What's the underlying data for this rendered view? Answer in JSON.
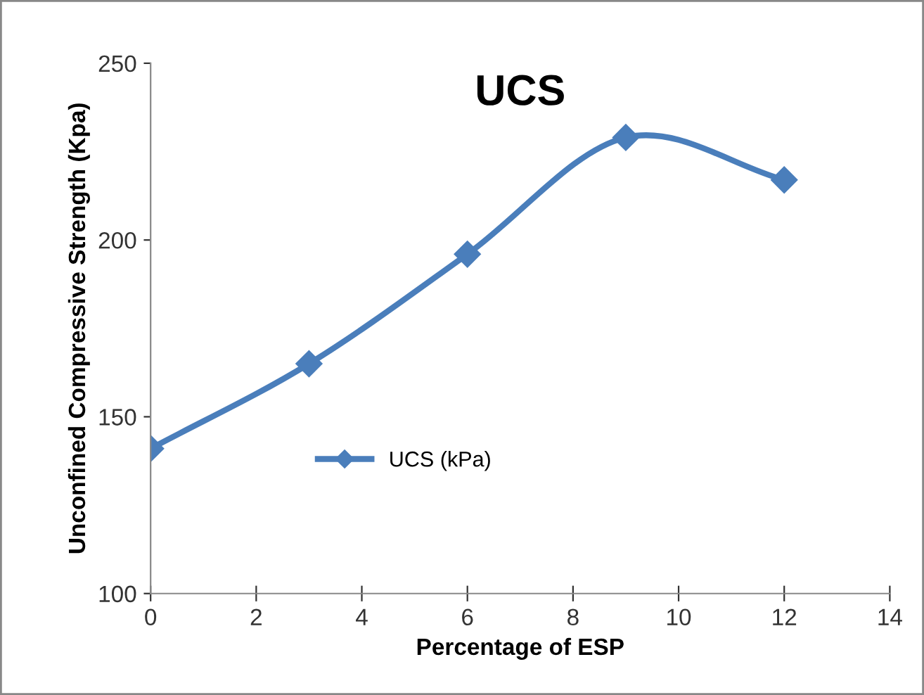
{
  "chart_data": {
    "type": "line",
    "title": "UCS",
    "xlabel": "Percentage of ESP",
    "ylabel": "Unconfined Compressive Strength (Kpa)",
    "x": [
      0,
      3,
      6,
      9,
      12
    ],
    "series": [
      {
        "name": "UCS (kPa)",
        "color": "#4a7ebb",
        "values": [
          141,
          165,
          196,
          229,
          217
        ]
      }
    ],
    "xlim": [
      0,
      14
    ],
    "xticks": [
      0,
      2,
      4,
      6,
      8,
      10,
      12,
      14
    ],
    "ylim": [
      100,
      250
    ],
    "yticks": [
      100,
      150,
      200,
      250
    ],
    "grid": false,
    "legend": "center left",
    "marker": "diamond",
    "line_style": "solid"
  }
}
